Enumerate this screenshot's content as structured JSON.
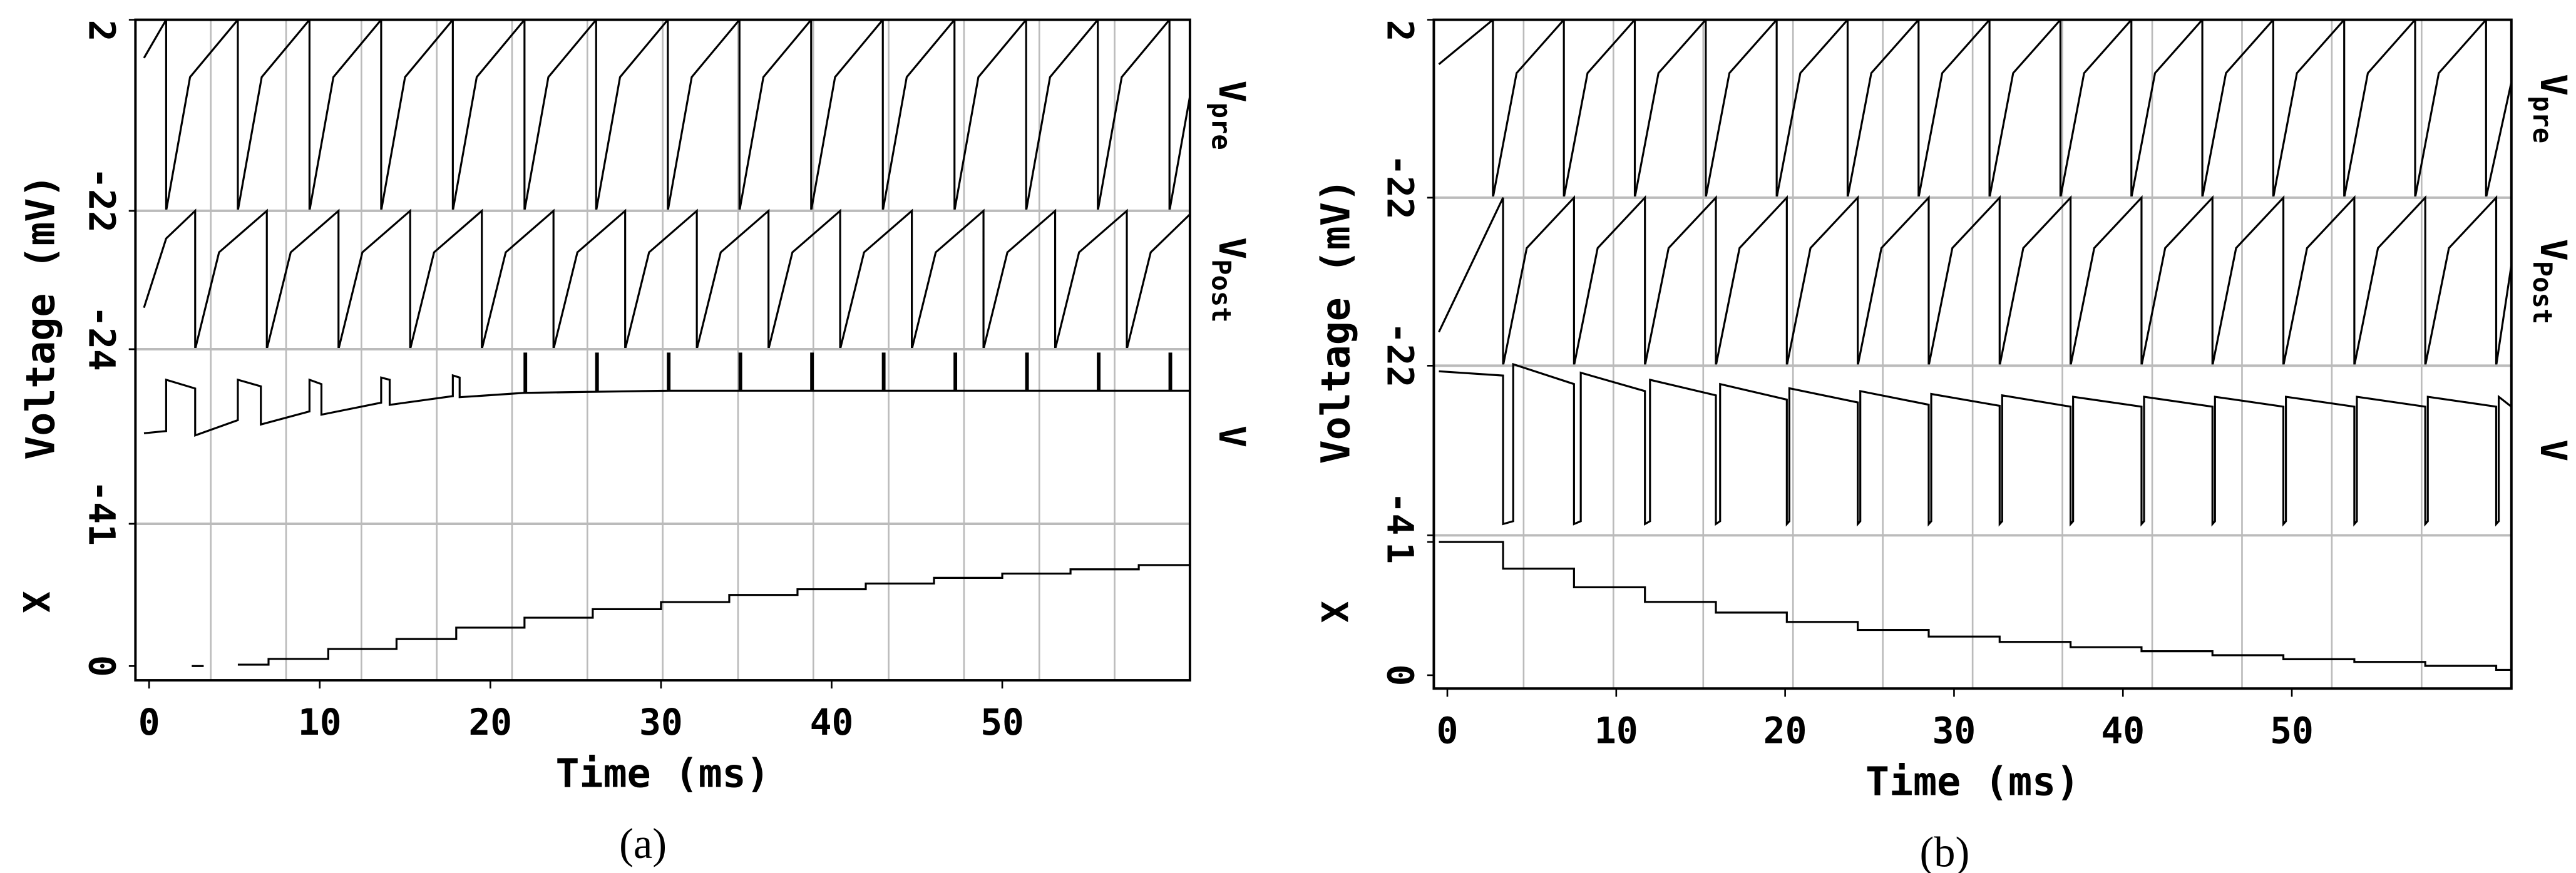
{
  "chart_data": [
    {
      "type": "line",
      "caption": "(a)",
      "xlabel": "Time (ms)",
      "ylabel": "Voltage (mV)",
      "xlim": [
        -0.8,
        61
      ],
      "xticks": [
        0,
        10,
        20,
        30,
        40,
        50
      ],
      "xdivisions": 14,
      "panels": [
        {
          "label": "V",
          "label_sub": "pre",
          "label_side": "right",
          "ylim": [
            -2,
            2
          ],
          "yticks": [
            -2,
            2
          ],
          "color": "#000000",
          "x": [
            -0.3,
            1.0,
            1.0,
            2.4,
            5.2,
            5.2,
            6.6,
            9.4,
            9.4,
            10.8,
            13.6,
            13.6,
            15.0,
            17.8,
            17.8,
            19.2,
            22.0,
            22.0,
            23.4,
            26.2,
            26.2,
            27.6,
            30.4,
            30.4,
            31.8,
            34.6,
            34.6,
            36.0,
            38.8,
            38.8,
            40.2,
            43.0,
            43.0,
            44.4,
            47.2,
            47.2,
            48.6,
            51.4,
            51.4,
            52.8,
            55.6,
            55.6,
            57.0,
            59.8,
            59.8,
            61.0
          ],
          "values": [
            1.2,
            2,
            -2,
            0.8,
            2,
            -2,
            0.8,
            2,
            -2,
            0.8,
            2,
            -2,
            0.8,
            2,
            -2,
            0.8,
            2,
            -2,
            0.8,
            2,
            -2,
            0.8,
            2,
            -2,
            0.8,
            2,
            -2,
            0.8,
            2,
            -2,
            0.8,
            2,
            -2,
            0.8,
            2,
            -2,
            0.8,
            2,
            -2,
            0.8,
            2,
            -2,
            0.8,
            2,
            -2,
            0.4
          ]
        },
        {
          "label": "V",
          "label_sub": "Post",
          "label_side": "right",
          "ylim": [
            -2,
            2
          ],
          "yticks": [
            -2,
            2
          ],
          "color": "#000000",
          "x": [
            -0.3,
            1.0,
            2.7,
            2.7,
            4.1,
            6.9,
            6.9,
            8.3,
            11.1,
            11.1,
            12.5,
            15.3,
            15.3,
            16.7,
            19.5,
            19.5,
            20.9,
            23.7,
            23.7,
            25.1,
            27.9,
            27.9,
            29.3,
            32.1,
            32.1,
            33.5,
            36.3,
            36.3,
            37.7,
            40.5,
            40.5,
            41.9,
            44.7,
            44.7,
            46.1,
            48.9,
            48.9,
            50.3,
            53.1,
            53.1,
            54.5,
            57.3,
            57.3,
            58.7,
            61.0
          ],
          "values": [
            -0.8,
            1.2,
            2,
            -2,
            0.8,
            2,
            -2,
            0.8,
            2,
            -2,
            0.8,
            2,
            -2,
            0.8,
            2,
            -2,
            0.8,
            2,
            -2,
            0.8,
            2,
            -2,
            0.8,
            2,
            -2,
            0.8,
            2,
            -2,
            0.8,
            2,
            -2,
            0.8,
            2,
            -2,
            0.8,
            2,
            -2,
            0.8,
            2,
            -2,
            0.8,
            2,
            -2,
            0.8,
            1.9
          ]
        },
        {
          "label": "V",
          "label_side": "right",
          "ylim": [
            -4,
            4
          ],
          "yticks": [
            -4,
            4
          ],
          "color": "#000000",
          "x": [
            -0.3,
            1.0,
            1.0,
            2.7,
            2.7,
            5.2,
            5.2,
            6.55,
            6.55,
            9.4,
            9.4,
            10.1,
            10.1,
            13.6,
            13.6,
            14.1,
            14.1,
            17.8,
            17.8,
            18.2,
            18.2,
            22.0,
            22.0,
            22.1,
            22.1,
            26.2,
            26.2,
            26.3,
            26.3,
            30.4,
            30.4,
            30.5,
            30.5,
            34.6,
            34.6,
            34.7,
            34.7,
            38.8,
            38.8,
            38.9,
            38.9,
            43.0,
            43.0,
            43.1,
            43.1,
            47.2,
            47.2,
            47.3,
            47.3,
            51.4,
            51.4,
            51.5,
            51.5,
            55.6,
            55.6,
            55.7,
            55.7,
            59.8,
            59.8,
            59.9,
            59.9,
            61.0
          ],
          "values": [
            0.15,
            0.25,
            2.6,
            2.2,
            0.05,
            0.75,
            2.6,
            2.3,
            0.55,
            1.15,
            2.6,
            2.4,
            1.0,
            1.55,
            2.7,
            2.6,
            1.45,
            1.85,
            2.8,
            2.7,
            1.8,
            2.0,
            3.8,
            3.8,
            2.0,
            2.05,
            3.8,
            3.8,
            2.05,
            2.1,
            3.8,
            3.8,
            2.1,
            2.1,
            3.8,
            3.8,
            2.1,
            2.1,
            3.8,
            3.8,
            2.1,
            2.1,
            3.8,
            3.8,
            2.1,
            2.1,
            3.8,
            3.8,
            2.1,
            2.1,
            3.8,
            3.8,
            2.1,
            2.1,
            3.8,
            3.8,
            2.1,
            2.1,
            3.8,
            3.8,
            2.1,
            2.1
          ]
        },
        {
          "label": "X",
          "label_side": "left",
          "ylim": [
            -0.1,
            1
          ],
          "yticks": [
            0,
            1
          ],
          "color": "#000000",
          "x": [
            2.5,
            3.2,
            4.0,
            5.2,
            7,
            7,
            10.5,
            10.5,
            14.5,
            14.5,
            18,
            18,
            22,
            22,
            26,
            26,
            30,
            30,
            34,
            34,
            38,
            38,
            42,
            42,
            46,
            46,
            50,
            50,
            54,
            54,
            58,
            58,
            61
          ],
          "values": [
            0,
            0,
            null,
            0.01,
            0.01,
            0.05,
            0.05,
            0.12,
            0.12,
            0.19,
            0.19,
            0.27,
            0.27,
            0.34,
            0.34,
            0.4,
            0.4,
            0.45,
            0.45,
            0.5,
            0.5,
            0.54,
            0.54,
            0.58,
            0.58,
            0.62,
            0.62,
            0.65,
            0.65,
            0.68,
            0.68,
            0.71,
            0.71
          ]
        }
      ]
    },
    {
      "type": "line",
      "caption": "(b)",
      "xlabel": "Time (ms)",
      "ylabel": "Voltage (mV)",
      "xlim": [
        -0.8,
        63
      ],
      "xticks": [
        0,
        10,
        20,
        30,
        40,
        50
      ],
      "xdivisions": 12,
      "panels": [
        {
          "label": "V",
          "label_sub": "pre",
          "label_side": "right",
          "ylim": [
            -2,
            2
          ],
          "yticks": [
            -2,
            2
          ],
          "color": "#000000",
          "x": [
            -0.5,
            2.7,
            2.7,
            4.1,
            6.9,
            6.9,
            8.3,
            11.1,
            11.1,
            12.5,
            15.3,
            15.3,
            16.7,
            19.5,
            19.5,
            20.9,
            23.7,
            23.7,
            25.1,
            27.9,
            27.9,
            29.3,
            32.1,
            32.1,
            33.5,
            36.3,
            36.3,
            37.7,
            40.5,
            40.5,
            41.9,
            44.7,
            44.7,
            46.1,
            48.9,
            48.9,
            50.3,
            53.1,
            53.1,
            54.5,
            57.3,
            57.3,
            58.7,
            61.5,
            61.5,
            63.0
          ],
          "values": [
            1.0,
            2,
            -2,
            0.8,
            2,
            -2,
            0.8,
            2,
            -2,
            0.8,
            2,
            -2,
            0.8,
            2,
            -2,
            0.8,
            2,
            -2,
            0.8,
            2,
            -2,
            0.8,
            2,
            -2,
            0.8,
            2,
            -2,
            0.8,
            2,
            -2,
            0.8,
            2,
            -2,
            0.8,
            2,
            -2,
            0.8,
            2,
            -2,
            0.8,
            2,
            -2,
            0.8,
            2,
            -2,
            0.6
          ]
        },
        {
          "label": "V",
          "label_sub": "Post",
          "label_side": "right",
          "ylim": [
            -2,
            2
          ],
          "yticks": [
            -2,
            2
          ],
          "color": "#000000",
          "x": [
            -0.5,
            3.3,
            3.3,
            4.7,
            7.5,
            7.5,
            8.9,
            11.7,
            11.7,
            13.1,
            15.9,
            15.9,
            17.3,
            20.1,
            20.1,
            21.5,
            24.3,
            24.3,
            25.7,
            28.5,
            28.5,
            29.9,
            32.7,
            32.7,
            34.1,
            36.9,
            36.9,
            38.3,
            41.1,
            41.1,
            42.5,
            45.3,
            45.3,
            46.7,
            49.5,
            49.5,
            50.9,
            53.7,
            53.7,
            55.1,
            57.9,
            57.9,
            59.3,
            62.1,
            62.1,
            63.0
          ],
          "values": [
            -1.2,
            2,
            -2,
            0.8,
            2,
            -2,
            0.8,
            2,
            -2,
            0.8,
            2,
            -2,
            0.8,
            2,
            -2,
            0.8,
            2,
            -2,
            0.8,
            2,
            -2,
            0.8,
            2,
            -2,
            0.8,
            2,
            -2,
            0.8,
            2,
            -2,
            0.8,
            2,
            -2,
            0.8,
            2,
            -2,
            0.8,
            2,
            -2,
            0.8,
            2,
            -2,
            0.8,
            2,
            -2,
            0.4
          ]
        },
        {
          "label": "V",
          "label_side": "right",
          "ylim": [
            -4,
            2
          ],
          "yticks": [
            -4,
            2
          ],
          "color": "#000000",
          "x": [
            -0.5,
            3.3,
            3.3,
            3.9,
            3.9,
            7.5,
            7.5,
            7.9,
            7.9,
            11.7,
            11.7,
            12.0,
            12.0,
            15.9,
            15.9,
            16.15,
            16.15,
            20.1,
            20.1,
            20.25,
            20.25,
            24.3,
            24.3,
            24.45,
            24.45,
            28.5,
            28.5,
            28.65,
            28.65,
            32.7,
            32.7,
            32.85,
            32.85,
            36.9,
            36.9,
            37.05,
            37.05,
            41.1,
            41.1,
            41.25,
            41.25,
            45.3,
            45.3,
            45.45,
            45.45,
            49.5,
            49.5,
            49.65,
            49.65,
            53.7,
            53.7,
            53.85,
            53.85,
            57.9,
            57.9,
            58.05,
            58.05,
            62.1,
            62.1,
            62.25,
            62.25,
            63.0
          ],
          "values": [
            1.8,
            1.65,
            -3.6,
            -3.5,
            2.05,
            1.35,
            -3.6,
            -3.5,
            1.75,
            1.1,
            -3.6,
            -3.5,
            1.5,
            0.95,
            -3.6,
            -3.5,
            1.35,
            0.8,
            -3.6,
            -3.5,
            1.2,
            0.7,
            -3.6,
            -3.5,
            1.1,
            0.62,
            -3.6,
            -3.5,
            1.0,
            0.58,
            -3.6,
            -3.5,
            0.95,
            0.55,
            -3.6,
            -3.5,
            0.9,
            0.55,
            -3.6,
            -3.5,
            0.9,
            0.55,
            -3.6,
            -3.5,
            0.9,
            0.55,
            -3.6,
            -3.5,
            0.9,
            0.55,
            -3.6,
            -3.5,
            0.9,
            0.55,
            -3.6,
            -3.5,
            0.9,
            0.55,
            -3.6,
            -3.5,
            0.9,
            0.55
          ]
        },
        {
          "label": "X",
          "label_side": "left",
          "ylim": [
            -0.1,
            1.05
          ],
          "yticks": [
            0,
            1
          ],
          "color": "#000000",
          "x": [
            -0.5,
            3.3,
            3.3,
            7.5,
            7.5,
            11.7,
            11.7,
            15.9,
            15.9,
            20.1,
            20.1,
            24.3,
            24.3,
            28.5,
            28.5,
            32.7,
            32.7,
            36.9,
            36.9,
            41.1,
            41.1,
            45.3,
            45.3,
            49.5,
            49.5,
            53.7,
            53.7,
            57.9,
            57.9,
            62.1,
            62.1,
            63.0
          ],
          "values": [
            1,
            1,
            0.8,
            0.8,
            0.66,
            0.66,
            0.55,
            0.55,
            0.47,
            0.47,
            0.4,
            0.4,
            0.34,
            0.34,
            0.29,
            0.29,
            0.25,
            0.25,
            0.21,
            0.21,
            0.18,
            0.18,
            0.15,
            0.15,
            0.12,
            0.12,
            0.1,
            0.1,
            0.07,
            0.07,
            0.04,
            0.04
          ]
        }
      ]
    }
  ]
}
